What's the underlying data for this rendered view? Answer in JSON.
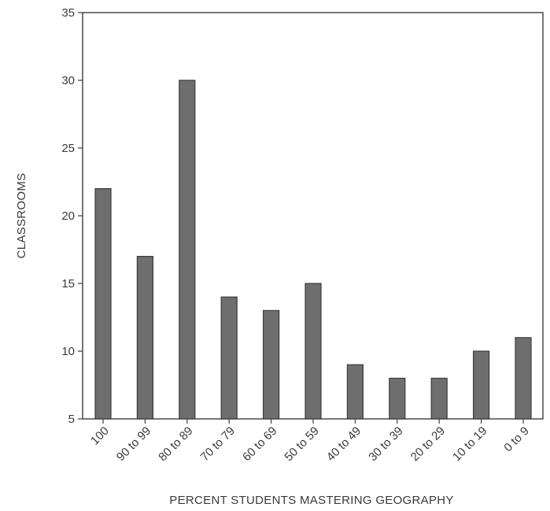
{
  "chart_data": {
    "type": "bar",
    "xlabel": "PERCENT STUDENTS MASTERING GEOGRAPHY",
    "ylabel": "CLASSROOMS",
    "categories": [
      "100",
      "90 to 99",
      "80 to 89",
      "70 to 79",
      "60 to 69",
      "50 to 59",
      "40 to 49",
      "30 to 39",
      "20 to 29",
      "10 to 19",
      "0 to 9"
    ],
    "values": [
      22,
      17,
      30,
      14,
      13,
      15,
      9,
      8,
      8,
      10,
      11
    ],
    "ylim": [
      5,
      35
    ],
    "yticks": [
      "5",
      "10",
      "15",
      "20",
      "25",
      "30",
      "35"
    ],
    "grid": false,
    "colors": {
      "bar_fill": "#6e6e6e",
      "bar_stroke": "#3c3c3c",
      "axis": "#4a4a4a"
    }
  }
}
